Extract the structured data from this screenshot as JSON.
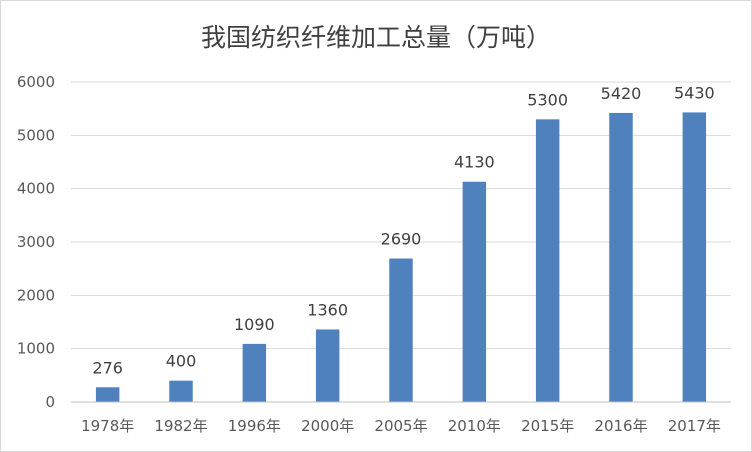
{
  "chart_data": {
    "type": "bar",
    "title": "我国纺织纤维加工总量（万吨）",
    "categories": [
      "1978年",
      "1982年",
      "1996年",
      "2000年",
      "2005年",
      "2010年",
      "2015年",
      "2016年",
      "2017年"
    ],
    "series": [
      {
        "values": [
          276,
          400,
          1090,
          1360,
          2690,
          4130,
          5300,
          5420,
          5430
        ],
        "color": "#4f81bd"
      }
    ],
    "data_labels": [
      "276",
      "400",
      "1090",
      "1360",
      "2690",
      "4130",
      "5300",
      "5420",
      "5430"
    ],
    "y_ticks": [
      0,
      1000,
      2000,
      3000,
      4000,
      5000,
      6000
    ],
    "y_tick_labels": [
      "0",
      "1000",
      "2000",
      "3000",
      "4000",
      "5000",
      "6000"
    ],
    "ylim": [
      0,
      6000
    ],
    "xlabel": "",
    "ylabel": "",
    "grid": true,
    "legend": "none"
  }
}
